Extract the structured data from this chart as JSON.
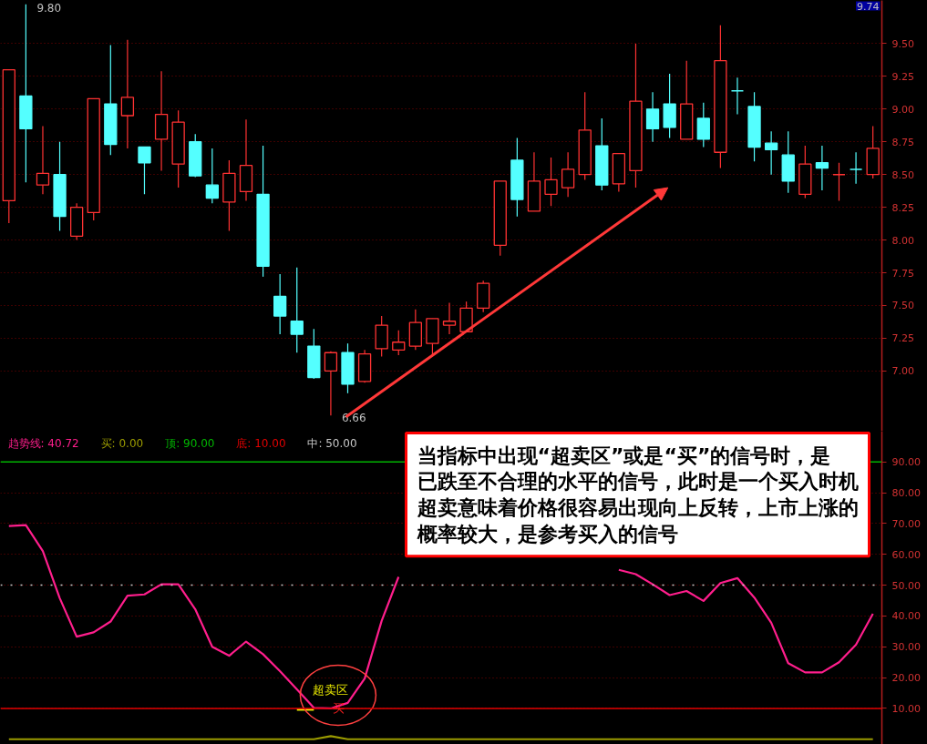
{
  "chart_data": [
    {
      "type": "candlestick",
      "categories": [
        null,
        null,
        null,
        null,
        null,
        null,
        null,
        null,
        null,
        null,
        null,
        null,
        null,
        null,
        null,
        null,
        null,
        null,
        null,
        null,
        null,
        null,
        null,
        null,
        null,
        null,
        null,
        null,
        null,
        null,
        null,
        null,
        null,
        null,
        null,
        null,
        null,
        null,
        null,
        null,
        null,
        null,
        null,
        null,
        null,
        null,
        null,
        null,
        null,
        null,
        null,
        null
      ],
      "ohlc": [
        [
          8.3,
          9.3,
          8.13,
          9.3
        ],
        [
          9.1,
          9.8,
          8.44,
          8.85
        ],
        [
          8.42,
          8.87,
          8.35,
          8.51
        ],
        [
          8.5,
          8.75,
          8.07,
          8.18
        ],
        [
          8.03,
          8.28,
          8.0,
          8.25
        ],
        [
          8.21,
          9.08,
          8.15,
          9.08
        ],
        [
          9.04,
          9.49,
          8.65,
          8.73
        ],
        [
          8.95,
          9.53,
          8.7,
          9.09
        ],
        [
          8.71,
          8.71,
          8.35,
          8.59
        ],
        [
          8.77,
          9.29,
          8.53,
          8.96
        ],
        [
          8.58,
          8.99,
          8.4,
          8.9
        ],
        [
          8.75,
          8.81,
          8.48,
          8.49
        ],
        [
          8.42,
          8.7,
          8.28,
          8.32
        ],
        [
          8.29,
          8.61,
          8.07,
          8.51
        ],
        [
          8.37,
          8.92,
          8.3,
          8.57
        ],
        [
          8.35,
          8.72,
          7.72,
          7.8
        ],
        [
          7.57,
          7.74,
          7.28,
          7.42
        ],
        [
          7.38,
          7.79,
          7.14,
          7.28
        ],
        [
          7.19,
          7.32,
          6.94,
          6.95
        ],
        [
          7.0,
          7.15,
          6.66,
          7.14
        ],
        [
          7.14,
          7.21,
          6.83,
          6.9
        ],
        [
          6.92,
          7.16,
          6.91,
          7.13
        ],
        [
          7.17,
          7.42,
          7.11,
          7.35
        ],
        [
          7.16,
          7.31,
          7.12,
          7.22
        ],
        [
          7.19,
          7.47,
          7.16,
          7.37
        ],
        [
          7.21,
          7.4,
          7.12,
          7.4
        ],
        [
          7.35,
          7.52,
          7.28,
          7.38
        ],
        [
          7.3,
          7.53,
          7.3,
          7.48
        ],
        [
          7.48,
          7.69,
          7.45,
          7.67
        ],
        [
          7.96,
          8.45,
          7.88,
          8.45
        ],
        [
          8.61,
          8.78,
          8.18,
          8.31
        ],
        [
          8.22,
          8.67,
          8.22,
          8.45
        ],
        [
          8.35,
          8.63,
          8.26,
          8.46
        ],
        [
          8.4,
          8.67,
          8.33,
          8.54
        ],
        [
          8.5,
          9.13,
          8.46,
          8.84
        ],
        [
          8.72,
          8.93,
          8.38,
          8.42
        ],
        [
          8.43,
          8.66,
          8.37,
          8.66
        ],
        [
          8.53,
          9.5,
          8.4,
          9.06
        ],
        [
          9.0,
          9.13,
          8.75,
          8.85
        ],
        [
          9.04,
          9.27,
          8.78,
          8.86
        ],
        [
          8.77,
          9.37,
          8.77,
          9.04
        ],
        [
          8.93,
          9.05,
          8.71,
          8.77
        ],
        [
          8.67,
          9.64,
          8.55,
          9.37
        ],
        [
          9.14,
          9.24,
          8.96,
          9.14
        ],
        [
          9.02,
          9.13,
          8.6,
          8.71
        ],
        [
          8.74,
          8.83,
          8.5,
          8.69
        ],
        [
          8.65,
          8.83,
          8.36,
          8.45
        ],
        [
          8.35,
          8.72,
          8.32,
          8.58
        ],
        [
          8.59,
          8.72,
          8.38,
          8.55
        ],
        [
          8.5,
          8.59,
          8.3,
          8.5
        ],
        [
          8.54,
          8.67,
          8.43,
          8.54
        ],
        [
          8.5,
          8.87,
          8.47,
          8.7
        ]
      ],
      "colors": [
        "#ff3232",
        "#54ffff",
        "#ff3232",
        "#54ffff",
        "#ff3232",
        "#ff3232",
        "#54ffff",
        "#ff3232",
        "#54ffff",
        "#ff3232",
        "#ff3232",
        "#54ffff",
        "#54ffff",
        "#ff3232",
        "#ff3232",
        "#54ffff",
        "#54ffff",
        "#54ffff",
        "#54ffff",
        "#ff3232",
        "#54ffff",
        "#ff3232",
        "#ff3232",
        "#ff3232",
        "#ff3232",
        "#ff3232",
        "#ff3232",
        "#ff3232",
        "#ff3232",
        "#ff3232",
        "#54ffff",
        "#ff3232",
        "#ff3232",
        "#ff3232",
        "#ff3232",
        "#54ffff",
        "#ff3232",
        "#ff3232",
        "#54ffff",
        "#54ffff",
        "#ff3232",
        "#54ffff",
        "#ff3232",
        "#54ffff",
        "#54ffff",
        "#54ffff",
        "#54ffff",
        "#ff3232",
        "#54ffff",
        "#ff3232",
        "#54ffff",
        "#ff3232"
      ],
      "ylim": [
        6.54,
        9.83
      ],
      "yticks": [
        {
          "value": 7,
          "label": "7.00"
        },
        {
          "value": 7.25,
          "label": "7.25"
        },
        {
          "value": 7.5,
          "label": "7.50"
        },
        {
          "value": 7.75,
          "label": "7.75"
        },
        {
          "value": 8,
          "label": "8.00"
        },
        {
          "value": 8.25,
          "label": "8.25"
        },
        {
          "value": 8.5,
          "label": "8.50"
        },
        {
          "value": 8.75,
          "label": "8.75"
        },
        {
          "value": 9,
          "label": "9.00"
        },
        {
          "value": 9.25,
          "label": "9.25"
        },
        {
          "value": 9.5,
          "label": "9.50"
        }
      ],
      "grid": "y",
      "tick_labels": "y",
      "annotations": [
        "9.80",
        "6.66",
        "9.74"
      ]
    },
    {
      "type": "line",
      "categories": [
        null,
        null,
        null,
        null,
        null,
        null,
        null,
        null,
        null,
        null,
        null,
        null,
        null,
        null,
        null,
        null,
        null,
        null,
        null,
        null,
        null,
        null,
        null,
        null,
        null,
        null,
        null,
        null,
        null,
        null,
        null,
        null,
        null,
        null,
        null,
        null,
        null,
        null,
        null,
        null,
        null,
        null,
        null,
        null,
        null,
        null,
        null,
        null,
        null,
        null,
        null,
        null
      ],
      "series": [
        {
          "name": "趋势线: 40.72",
          "color": "#ff1e8c",
          "values": [
            69.2,
            69.5,
            61.1,
            45.8,
            33.3,
            34.7,
            38.2,
            46.6,
            47.0,
            50.3,
            50.3,
            42.2,
            30.0,
            27.1,
            31.7,
            27.6,
            22.1,
            16.2,
            10.2,
            10.0,
            11.8,
            19.7,
            38.4,
            52.7,
            null,
            null,
            null,
            null,
            null,
            null,
            null,
            null,
            null,
            null,
            null,
            null,
            55.0,
            53.6,
            50.3,
            46.8,
            48.1,
            44.9,
            50.7,
            52.3,
            46.0,
            37.8,
            24.7,
            21.7,
            21.7,
            25.0,
            30.7,
            40.72
          ]
        },
        {
          "name": "买: 0.00",
          "color": "#9b9b00",
          "values": [
            0,
            0,
            0,
            0,
            0,
            0,
            0,
            0,
            0,
            0,
            0,
            0,
            0,
            0,
            0,
            0,
            0,
            0,
            0,
            1,
            0,
            0,
            0,
            0,
            0,
            0,
            0,
            0,
            0,
            0,
            0,
            0,
            0,
            0,
            0,
            0,
            0,
            0,
            0,
            0,
            0,
            0,
            0,
            0,
            0,
            0,
            0,
            0,
            0,
            0,
            0,
            0
          ]
        },
        {
          "color": "#ffff00",
          "values": [
            null,
            null,
            null,
            null,
            null,
            null,
            null,
            null,
            null,
            null,
            null,
            null,
            null,
            null,
            null,
            null,
            null,
            9.6,
            9.6,
            null,
            null,
            null,
            null,
            null,
            null,
            null,
            null,
            null,
            null,
            null,
            null,
            null,
            null,
            null,
            null,
            null,
            null,
            null,
            null,
            null,
            null,
            null,
            null,
            null,
            null,
            null,
            null,
            null,
            null,
            null,
            null,
            null
          ]
        }
      ],
      "ylim": [
        -1.7,
        100
      ],
      "yticks": [
        {
          "value": 10,
          "label": "10.00"
        },
        {
          "value": 20,
          "label": "20.00"
        },
        {
          "value": 30,
          "label": "30.00"
        },
        {
          "value": 40,
          "label": "40.00"
        },
        {
          "value": 50,
          "label": "50.00"
        },
        {
          "value": 60,
          "label": "60.00"
        },
        {
          "value": 70,
          "label": "70.00"
        },
        {
          "value": 80,
          "label": "80.00"
        },
        {
          "value": 90,
          "label": "90.00"
        }
      ],
      "grid": "y",
      "tick_labels": "y",
      "legend": "top left",
      "ref_lines": [
        {
          "axis": "y",
          "value": 90,
          "label": "顶: 90.00",
          "color": "#00b400"
        },
        {
          "axis": "y",
          "value": 10,
          "label": "底: 10.00",
          "color": "#e00000"
        },
        {
          "axis": "y",
          "value": 50,
          "label": "中: 50.00",
          "color": "#c8c8c8",
          "line_style": "dotted"
        }
      ],
      "annotations": [
        "超卖区",
        "买",
        "当指标中出现“超卖区”或是“买”的信号时，是已跌至不合理的水平的信号，此时是一个买入时机超卖意味着价格很容易出现向上反转，上市上涨的概率较大，是参考买入的信号"
      ]
    }
  ]
}
